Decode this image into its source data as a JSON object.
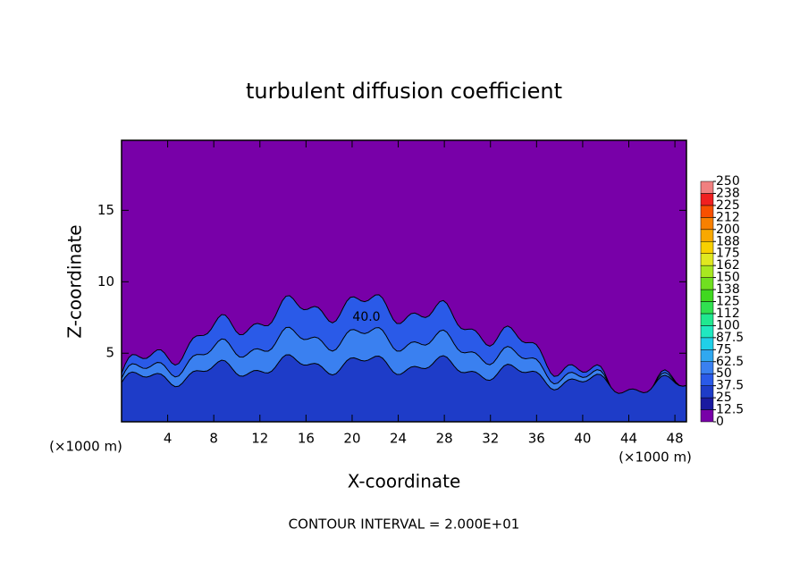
{
  "chart_data": {
    "type": "contour",
    "title": "turbulent diffusion coefficient",
    "xlabel": "X-coordinate",
    "ylabel": "Z-coordinate",
    "x_unit": "(×1000 m)",
    "y_unit": "(×1000 m)",
    "footnote": "CONTOUR INTERVAL = 2.000E+01",
    "annotation": "40.0",
    "xlim": [
      0,
      49
    ],
    "ylim": [
      0.2,
      19.9
    ],
    "xticks": [
      4,
      8,
      12,
      16,
      20,
      24,
      28,
      32,
      36,
      40,
      44,
      48
    ],
    "yticks": [
      5,
      10,
      15
    ],
    "colorbar": {
      "ticks": [
        0,
        12.5,
        25,
        37.5,
        50,
        62.5,
        75,
        87.5,
        100,
        {
          "value": 112.5,
          "label": "112"
        },
        125,
        {
          "value": 137.5,
          "label": "138"
        },
        150,
        {
          "value": 162.5,
          "label": "162"
        },
        175,
        {
          "value": 187.5,
          "label": "188"
        },
        200,
        {
          "value": 212.5,
          "label": "212"
        },
        225,
        {
          "value": 237.5,
          "label": "238"
        },
        250
      ],
      "colors": [
        "#7800a8",
        "#1a1aa0",
        "#1e3cc8",
        "#2a5ae8",
        "#3a80f0",
        "#30a8f0",
        "#20d0e8",
        "#20e8c0",
        "#20e890",
        "#30e050",
        "#40d820",
        "#70e020",
        "#a8e820",
        "#e0e820",
        "#f8d000",
        "#f8a800",
        "#f88000",
        "#f85000",
        "#f02020",
        "#f08080"
      ]
    }
  }
}
